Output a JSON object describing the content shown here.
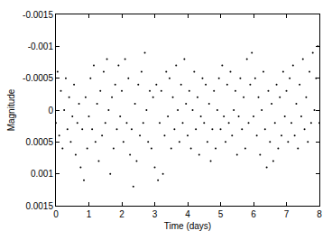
{
  "chart_data": {
    "type": "scatter",
    "x_label": "Time (days)",
    "y_label": "Magnitude",
    "color": "#000000",
    "marker": "dot",
    "grid": false,
    "xlim": [
      0,
      8
    ],
    "xticks": [
      0,
      1,
      2,
      3,
      4,
      5,
      6,
      7,
      8
    ],
    "ylim": [
      0.0015,
      -0.0015
    ],
    "yticks": [
      -0.0015,
      -0.001,
      -0.0005,
      0,
      0.0005,
      0.001,
      0.0015
    ],
    "x": [
      0,
      0.05,
      0.1,
      0.15,
      0.2,
      0.25,
      0.3,
      0.35,
      0.4,
      0.45,
      0.5,
      0.55,
      0.6,
      0.65,
      0.7,
      0.75,
      0.8,
      0.85,
      0.9,
      0.95,
      1,
      1.05,
      1.1,
      1.15,
      1.2,
      1.25,
      1.3,
      1.35,
      1.4,
      1.45,
      1.5,
      1.55,
      1.6,
      1.65,
      1.7,
      1.75,
      1.8,
      1.85,
      1.9,
      1.95,
      2,
      2.05,
      2.1,
      2.15,
      2.2,
      2.25,
      2.3,
      2.35,
      2.4,
      2.45,
      2.5,
      2.55,
      2.6,
      2.65,
      2.7,
      2.75,
      2.8,
      2.85,
      2.9,
      2.95,
      3,
      3.05,
      3.1,
      3.15,
      3.2,
      3.25,
      3.3,
      3.35,
      3.4,
      3.45,
      3.5,
      3.55,
      3.6,
      3.65,
      3.7,
      3.75,
      3.8,
      3.85,
      3.9,
      3.95,
      4,
      4.05,
      4.1,
      4.15,
      4.2,
      4.25,
      4.3,
      4.35,
      4.4,
      4.45,
      4.5,
      4.55,
      4.6,
      4.65,
      4.7,
      4.75,
      4.8,
      4.85,
      4.9,
      4.95,
      5,
      5.05,
      5.1,
      5.15,
      5.2,
      5.25,
      5.3,
      5.35,
      5.4,
      5.45,
      5.5,
      5.55,
      5.6,
      5.65,
      5.7,
      5.75,
      5.8,
      5.85,
      5.9,
      5.95,
      6,
      6.05,
      6.1,
      6.15,
      6.2,
      6.25,
      6.3,
      6.35,
      6.4,
      6.45,
      6.5,
      6.55,
      6.6,
      6.65,
      6.7,
      6.75,
      6.8,
      6.85,
      6.9,
      6.95,
      7,
      7.05,
      7.1,
      7.15,
      7.2,
      7.25,
      7.3,
      7.35,
      7.4,
      7.45,
      7.5,
      7.55,
      7.6,
      7.65,
      7.7,
      7.75,
      7.8,
      7.85,
      7.9,
      7.95,
      8
    ],
    "values": [
      0.0002,
      -0.0006,
      0.0004,
      -0.0003,
      0.0006,
      0,
      -0.0005,
      0.0003,
      -0.0002,
      0.0005,
      0.0001,
      -0.0004,
      0.0007,
      0.0002,
      -0.0001,
      0.0009,
      0.0003,
      0.0011,
      -0.0002,
      0.0006,
      0.0001,
      -0.0005,
      0.0003,
      -0.0007,
      0.0005,
      -0.0001,
      0.0008,
      -0.0003,
      0.0004,
      -0.0006,
      0.0002,
      -0.0008,
      0,
      0.001,
      -0.0002,
      0.0006,
      -0.0004,
      0.0003,
      -0.0007,
      0.0001,
      -0.0003,
      0.0005,
      -0.0008,
      0.0002,
      -0.0005,
      0.0007,
      0.0003,
      0.0012,
      -0.0001,
      0.0008,
      -0.0004,
      0.0004,
      -0.0006,
      0.0002,
      -0.0009,
      0,
      0.0005,
      -0.0003,
      0.0006,
      -0.0002,
      0.0009,
      -0.0004,
      0.0011,
      0.0002,
      -0.0003,
      0.001,
      0.0004,
      -0.0006,
      0.0001,
      -0.0005,
      0.0006,
      -0.0002,
      0.0003,
      -0.0007,
      0,
      0.0005,
      -0.0004,
      0.0002,
      -0.0008,
      -0.0001,
      0.0004,
      -0.0003,
      0.0006,
      0,
      -0.0006,
      0.0003,
      -0.0002,
      0.0007,
      0.0001,
      -0.0005,
      0.0002,
      -0.0004,
      0.0005,
      -0.0001,
      0.0008,
      0.0003,
      -0.0003,
      0.0006,
      0,
      -0.0005,
      0.0003,
      -0.0007,
      0.0001,
      0.0005,
      -0.0004,
      0.0002,
      -0.0006,
      0.0004,
      0,
      -0.0003,
      0.0007,
      0.0001,
      -0.0005,
      0.0003,
      -0.0002,
      0.0006,
      -0.0008,
      0.0002,
      -0.0004,
      -0.0009,
      0.0001,
      -0.0005,
      0.0004,
      -0.0002,
      0.0007,
      0,
      -0.0006,
      0.0003,
      0.0009,
      -0.0003,
      0.0005,
      -0.0001,
      0.0008,
      0.0002,
      -0.0004,
      0.0006,
      -0.0002,
      0.0004,
      -0.0006,
      0.0001,
      -0.0003,
      0.0005,
      -0.0005,
      0.0002,
      -0.0007,
      0.0004,
      -0.0001,
      0.0006,
      -0.0004,
      0.0001,
      -0.0008,
      0.0003,
      -0.0002,
      0.0005,
      -0.0006,
      0.0002,
      -0.0009,
      0,
      -0.0005,
      -0.001,
      0.0002
    ]
  }
}
